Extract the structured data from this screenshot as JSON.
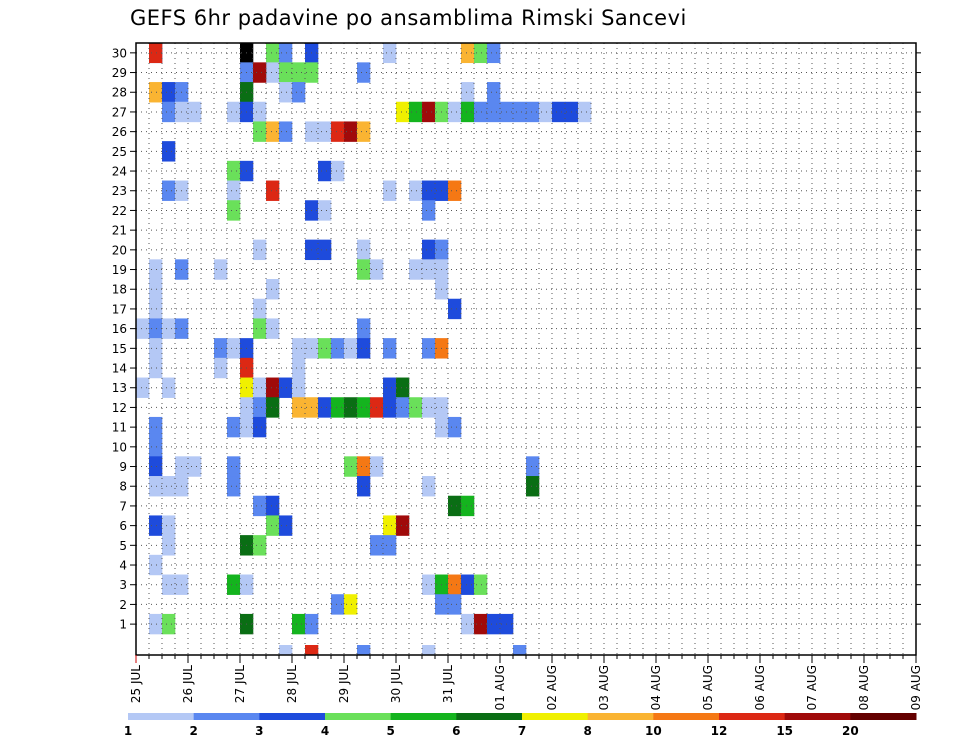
{
  "chart_data": {
    "type": "heatmap",
    "title": "GEFS 6hr padavine po ansamblima Rimski Sancevi",
    "xlabel": "",
    "ylabel": "",
    "x_tick_labels": [
      "25 JUL",
      "26 JUL",
      "27 JUL",
      "28 JUL",
      "29 JUL",
      "30 JUL",
      "31 JUL",
      "01 AUG",
      "02 AUG",
      "03 AUG",
      "04 AUG",
      "05 AUG",
      "06 AUG",
      "07 AUG",
      "08 AUG",
      "09 AUG"
    ],
    "y_tick_labels": [
      "1",
      "2",
      "3",
      "4",
      "5",
      "6",
      "7",
      "8",
      "9",
      "10",
      "11",
      "12",
      "13",
      "14",
      "15",
      "16",
      "17",
      "18",
      "19",
      "20",
      "21",
      "22",
      "23",
      "24",
      "25",
      "26",
      "27",
      "28",
      "29",
      "30"
    ],
    "n_time_steps": 60,
    "n_members": 30,
    "grid": "dotted",
    "colorbar": {
      "labels": [
        "1",
        "2",
        "3",
        "4",
        "5",
        "6",
        "7",
        "8",
        "10",
        "12",
        "15",
        "20"
      ],
      "colors": [
        "#b4c8f5",
        "#5a87f0",
        "#1e4bdc",
        "#6ae05a",
        "#14b41e",
        "#0a6e14",
        "#f0f000",
        "#fab432",
        "#f57814",
        "#dc2814",
        "#a00a0a",
        "#640000"
      ]
    },
    "cells": [
      [
        30,
        10,
        3
      ],
      [
        30,
        1,
        2
      ],
      [
        30,
        1,
        9
      ],
      [
        30,
        8,
        12
      ],
      [
        30,
        11,
        1
      ],
      [
        30,
        19,
        0
      ],
      [
        30,
        25,
        7
      ],
      [
        30,
        26,
        3
      ],
      [
        30,
        27,
        1
      ],
      [
        30,
        13,
        2
      ],
      [
        29,
        8,
        1
      ],
      [
        29,
        10,
        0
      ],
      [
        29,
        11,
        3
      ],
      [
        29,
        12,
        3
      ],
      [
        29,
        13,
        3
      ],
      [
        29,
        17,
        1
      ],
      [
        29,
        9,
        10
      ],
      [
        28,
        1,
        7
      ],
      [
        28,
        2,
        2
      ],
      [
        28,
        3,
        1
      ],
      [
        28,
        11,
        0
      ],
      [
        28,
        12,
        1
      ],
      [
        28,
        25,
        0
      ],
      [
        28,
        27,
        1
      ],
      [
        28,
        8,
        5
      ],
      [
        27,
        2,
        1
      ],
      [
        27,
        3,
        0
      ],
      [
        27,
        4,
        0
      ],
      [
        27,
        7,
        0
      ],
      [
        27,
        8,
        2
      ],
      [
        27,
        9,
        0
      ],
      [
        27,
        20,
        6
      ],
      [
        27,
        21,
        4
      ],
      [
        27,
        22,
        10
      ],
      [
        27,
        23,
        3
      ],
      [
        27,
        24,
        0
      ],
      [
        27,
        25,
        4
      ],
      [
        27,
        26,
        1
      ],
      [
        27,
        27,
        1
      ],
      [
        27,
        28,
        1
      ],
      [
        27,
        29,
        1
      ],
      [
        27,
        30,
        1
      ],
      [
        27,
        31,
        0
      ],
      [
        27,
        32,
        2
      ],
      [
        27,
        33,
        2
      ],
      [
        27,
        34,
        0
      ],
      [
        26,
        9,
        3
      ],
      [
        26,
        10,
        7
      ],
      [
        26,
        11,
        1
      ],
      [
        26,
        13,
        0
      ],
      [
        26,
        14,
        0
      ],
      [
        26,
        15,
        9
      ],
      [
        26,
        16,
        10
      ],
      [
        26,
        17,
        7
      ],
      [
        25,
        2,
        2
      ],
      [
        24,
        7,
        3
      ],
      [
        24,
        8,
        2
      ],
      [
        24,
        14,
        2
      ],
      [
        24,
        15,
        0
      ],
      [
        23,
        2,
        1
      ],
      [
        23,
        3,
        0
      ],
      [
        23,
        7,
        0
      ],
      [
        23,
        10,
        9
      ],
      [
        23,
        19,
        0
      ],
      [
        23,
        21,
        0
      ],
      [
        23,
        22,
        2
      ],
      [
        23,
        23,
        2
      ],
      [
        23,
        24,
        8
      ],
      [
        22,
        7,
        3
      ],
      [
        22,
        13,
        2
      ],
      [
        22,
        14,
        0
      ],
      [
        22,
        22,
        1
      ],
      [
        20,
        9,
        0
      ],
      [
        20,
        13,
        2
      ],
      [
        20,
        14,
        2
      ],
      [
        20,
        17,
        0
      ],
      [
        20,
        22,
        2
      ],
      [
        20,
        23,
        1
      ],
      [
        19,
        1,
        0
      ],
      [
        19,
        3,
        1
      ],
      [
        19,
        6,
        0
      ],
      [
        19,
        17,
        3
      ],
      [
        19,
        18,
        0
      ],
      [
        19,
        21,
        0
      ],
      [
        19,
        22,
        0
      ],
      [
        19,
        23,
        0
      ],
      [
        18,
        1,
        0
      ],
      [
        18,
        10,
        0
      ],
      [
        18,
        23,
        0
      ],
      [
        17,
        1,
        0
      ],
      [
        17,
        9,
        0
      ],
      [
        17,
        24,
        2
      ],
      [
        16,
        0,
        0
      ],
      [
        16,
        1,
        1
      ],
      [
        16,
        2,
        0
      ],
      [
        16,
        3,
        1
      ],
      [
        16,
        9,
        3
      ],
      [
        16,
        10,
        0
      ],
      [
        16,
        17,
        1
      ],
      [
        15,
        1,
        0
      ],
      [
        15,
        6,
        1
      ],
      [
        15,
        7,
        0
      ],
      [
        15,
        8,
        2
      ],
      [
        15,
        12,
        0
      ],
      [
        15,
        13,
        0
      ],
      [
        15,
        14,
        3
      ],
      [
        15,
        15,
        1
      ],
      [
        15,
        16,
        0
      ],
      [
        15,
        17,
        2
      ],
      [
        15,
        19,
        1
      ],
      [
        15,
        22,
        1
      ],
      [
        15,
        23,
        8
      ],
      [
        14,
        1,
        0
      ],
      [
        14,
        6,
        0
      ],
      [
        14,
        8,
        9
      ],
      [
        14,
        12,
        0
      ],
      [
        13,
        0,
        0
      ],
      [
        13,
        2,
        0
      ],
      [
        13,
        8,
        6
      ],
      [
        13,
        9,
        0
      ],
      [
        13,
        10,
        10
      ],
      [
        13,
        11,
        2
      ],
      [
        13,
        12,
        0
      ],
      [
        13,
        19,
        2
      ],
      [
        13,
        20,
        5
      ],
      [
        12,
        8,
        0
      ],
      [
        12,
        9,
        1
      ],
      [
        12,
        10,
        5
      ],
      [
        12,
        12,
        7
      ],
      [
        12,
        13,
        7
      ],
      [
        12,
        14,
        2
      ],
      [
        12,
        15,
        4
      ],
      [
        12,
        16,
        5
      ],
      [
        12,
        17,
        4
      ],
      [
        12,
        18,
        9
      ],
      [
        12,
        19,
        2
      ],
      [
        12,
        20,
        1
      ],
      [
        12,
        21,
        3
      ],
      [
        12,
        22,
        0
      ],
      [
        12,
        23,
        0
      ],
      [
        11,
        1,
        1
      ],
      [
        11,
        7,
        1
      ],
      [
        11,
        8,
        0
      ],
      [
        11,
        9,
        2
      ],
      [
        11,
        23,
        0
      ],
      [
        11,
        24,
        1
      ],
      [
        10,
        1,
        1
      ],
      [
        9,
        1,
        2
      ],
      [
        9,
        3,
        0
      ],
      [
        9,
        4,
        0
      ],
      [
        9,
        7,
        1
      ],
      [
        9,
        16,
        3
      ],
      [
        9,
        17,
        8
      ],
      [
        9,
        18,
        0
      ],
      [
        9,
        30,
        1
      ],
      [
        8,
        1,
        0
      ],
      [
        8,
        2,
        0
      ],
      [
        8,
        3,
        0
      ],
      [
        8,
        7,
        1
      ],
      [
        8,
        17,
        2
      ],
      [
        8,
        22,
        0
      ],
      [
        8,
        30,
        5
      ],
      [
        7,
        9,
        1
      ],
      [
        7,
        10,
        2
      ],
      [
        7,
        24,
        5
      ],
      [
        7,
        25,
        4
      ],
      [
        6,
        1,
        2
      ],
      [
        6,
        2,
        0
      ],
      [
        6,
        10,
        3
      ],
      [
        6,
        11,
        2
      ],
      [
        6,
        19,
        6
      ],
      [
        6,
        20,
        10
      ],
      [
        5,
        2,
        0
      ],
      [
        5,
        8,
        5
      ],
      [
        5,
        9,
        3
      ],
      [
        5,
        18,
        1
      ],
      [
        5,
        19,
        1
      ],
      [
        4,
        1,
        0
      ],
      [
        3,
        2,
        0
      ],
      [
        3,
        3,
        0
      ],
      [
        3,
        7,
        4
      ],
      [
        3,
        8,
        0
      ],
      [
        3,
        22,
        0
      ],
      [
        3,
        23,
        4
      ],
      [
        3,
        24,
        8
      ],
      [
        3,
        25,
        2
      ],
      [
        3,
        26,
        3
      ],
      [
        2,
        15,
        1
      ],
      [
        2,
        16,
        6
      ],
      [
        2,
        23,
        1
      ],
      [
        2,
        24,
        1
      ],
      [
        1,
        1,
        0
      ],
      [
        1,
        2,
        3
      ],
      [
        1,
        8,
        5
      ],
      [
        1,
        12,
        4
      ],
      [
        1,
        13,
        1
      ],
      [
        1,
        25,
        0
      ],
      [
        1,
        26,
        10
      ],
      [
        1,
        27,
        2
      ],
      [
        1,
        28,
        2
      ],
      [
        0,
        11,
        0
      ],
      [
        0,
        13,
        9
      ],
      [
        0,
        17,
        1
      ],
      [
        0,
        22,
        0
      ],
      [
        0,
        29,
        1
      ]
    ]
  }
}
